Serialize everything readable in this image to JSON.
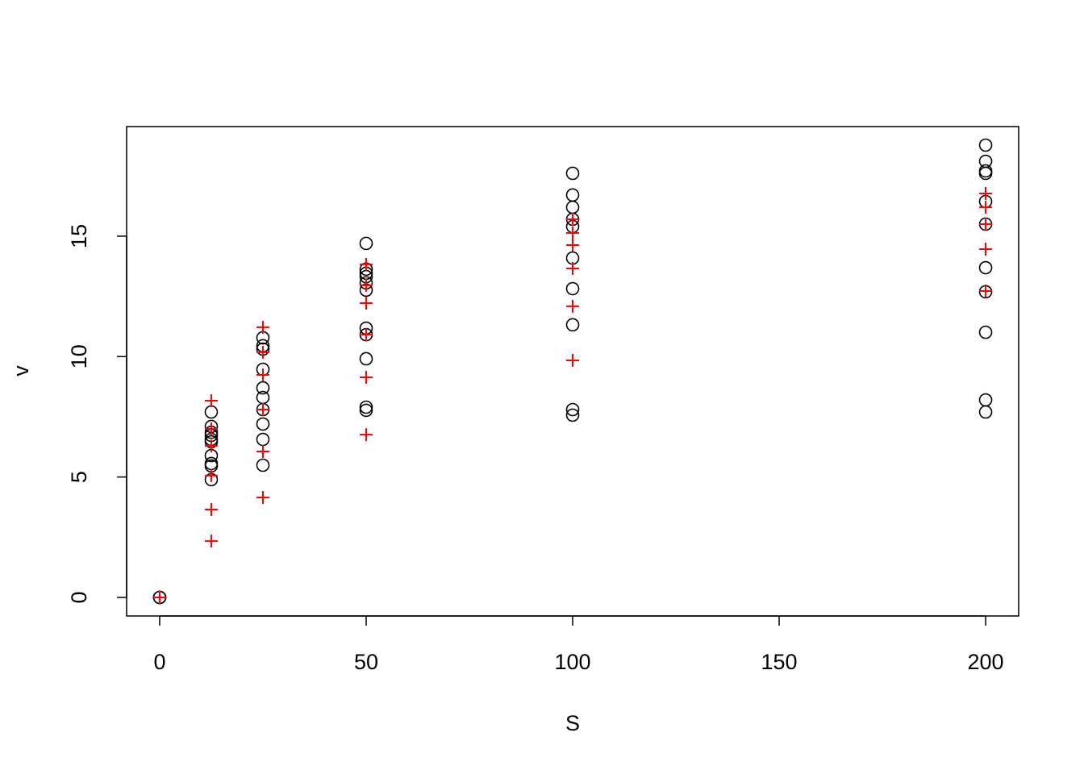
{
  "chart_data": {
    "type": "scatter",
    "xlabel": "S",
    "ylabel": "v",
    "xlim": [
      -8,
      208
    ],
    "ylim": [
      -0.77,
      19.55
    ],
    "xticks": [
      0,
      50,
      100,
      150,
      200
    ],
    "yticks": [
      0,
      5,
      10,
      15
    ],
    "series": [
      {
        "color": "#000000",
        "marker": "circle",
        "x": [
          0,
          0,
          0,
          12.5,
          12.5,
          12.5,
          12.5,
          12.5,
          12.5,
          12.5,
          12.5,
          12.5,
          12.5,
          25,
          25,
          25,
          25,
          25,
          25,
          25,
          25,
          25,
          25,
          50,
          50,
          50,
          50,
          50,
          50,
          50,
          50,
          50,
          50,
          50,
          100,
          100,
          100,
          100,
          100,
          100,
          100,
          100,
          100,
          100,
          200,
          200,
          200,
          200,
          200,
          200,
          200,
          200,
          200,
          200,
          200
        ],
        "values": [
          0,
          0,
          0,
          7.7,
          7.1,
          6.86,
          6.73,
          6.56,
          6.46,
          5.89,
          5.56,
          5.46,
          4.89,
          10.78,
          10.45,
          10.31,
          9.47,
          8.7,
          8.3,
          7.8,
          7.2,
          6.56,
          5.49,
          14.7,
          13.63,
          13.46,
          13.32,
          13.06,
          12.76,
          11.18,
          10.91,
          9.91,
          7.9,
          7.77,
          17.61,
          16.71,
          16.2,
          15.7,
          15.4,
          14.09,
          12.82,
          11.32,
          7.8,
          7.57,
          18.78,
          18.11,
          17.71,
          17.61,
          16.44,
          15.5,
          13.69,
          12.69,
          11.01,
          8.2,
          7.7
        ]
      },
      {
        "color": "#ff0000",
        "marker": "plus",
        "x": [
          0,
          0,
          12.5,
          12.5,
          12.5,
          12.5,
          12.5,
          12.5,
          25,
          25,
          25,
          25,
          25,
          25,
          50,
          50,
          50,
          50,
          50,
          50,
          100,
          100,
          100,
          100,
          100,
          100,
          200,
          200,
          200,
          200,
          200
        ],
        "values": [
          0,
          0,
          8.17,
          7.0,
          6.29,
          5.06,
          3.65,
          2.34,
          11.22,
          10.18,
          9.24,
          7.8,
          6.06,
          4.15,
          13.83,
          12.96,
          12.22,
          10.91,
          9.14,
          6.76,
          15.7,
          15.13,
          14.63,
          13.66,
          12.09,
          9.84,
          16.77,
          16.2,
          15.5,
          14.46,
          12.72
        ]
      }
    ]
  }
}
